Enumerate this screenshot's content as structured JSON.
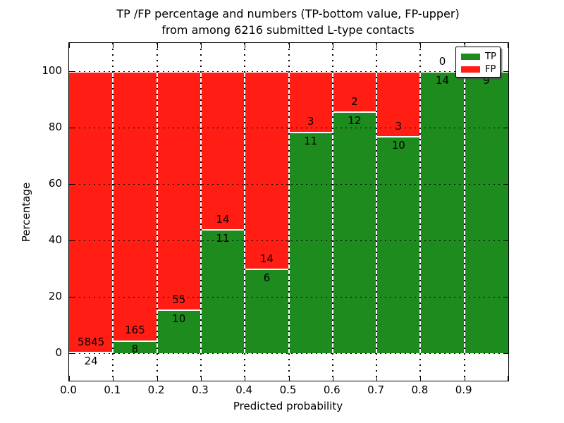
{
  "title": {
    "line1": "TP /FP percentage and numbers (TP-bottom value, FP-upper)",
    "line2": "from among 6216 submitted L-type contacts"
  },
  "axes": {
    "xlabel": "Predicted probability",
    "ylabel": "Percentage",
    "x_tick_labels": [
      "0.0",
      "0.1",
      "0.2",
      "0.3",
      "0.4",
      "0.5",
      "0.6",
      "0.7",
      "0.8",
      "0.9"
    ],
    "y_tick_labels": [
      "0",
      "20",
      "40",
      "60",
      "80",
      "100"
    ],
    "y_tick_values": [
      0,
      20,
      40,
      60,
      80,
      100
    ],
    "grid": "dotted"
  },
  "legend": {
    "items": [
      {
        "label": "TP",
        "color": "#1e8b1e"
      },
      {
        "label": "FP",
        "color": "#ff1d14"
      }
    ],
    "position": "upper right"
  },
  "colors": {
    "tp_green": "#1e8b1e",
    "fp_red": "#ff1d14",
    "axis_black": "#000000",
    "background": "#ffffff"
  },
  "chart_data": {
    "type": "bar",
    "stacked": true,
    "normalized_to_percent": true,
    "title": "TP /FP percentage and numbers (TP-bottom value, FP-upper) from among 6216 submitted L-type contacts",
    "xlabel": "Predicted probability",
    "ylabel": "Percentage",
    "xlim": [
      0.0,
      1.0
    ],
    "ylim": [
      -10,
      110
    ],
    "bin_width": 0.1,
    "bin_starts": [
      0.0,
      0.1,
      0.2,
      0.3,
      0.4,
      0.5,
      0.6,
      0.7,
      0.8,
      0.9
    ],
    "series": [
      {
        "name": "TP",
        "color": "#1e8b1e",
        "counts": [
          24,
          8,
          10,
          11,
          6,
          11,
          12,
          10,
          14,
          9
        ]
      },
      {
        "name": "FP",
        "color": "#ff1d14",
        "counts": [
          5845,
          165,
          55,
          14,
          14,
          3,
          2,
          3,
          0,
          0
        ]
      }
    ]
  }
}
